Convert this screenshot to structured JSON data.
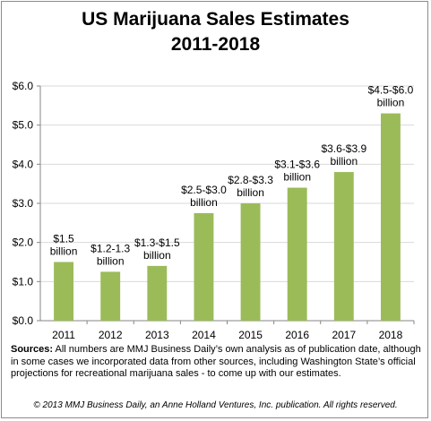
{
  "chart_data": {
    "type": "bar",
    "title": "US Marijuana Sales Estimates",
    "subtitle": "2011-2018",
    "categories": [
      "2011",
      "2012",
      "2013",
      "2014",
      "2015",
      "2016",
      "2017",
      "2018"
    ],
    "values": [
      1.5,
      1.25,
      1.4,
      2.75,
      3.0,
      3.4,
      3.8,
      5.3
    ],
    "value_unit": "$ billion",
    "data_labels": [
      [
        "$1.5",
        "billion"
      ],
      [
        "$1.2-1.3",
        "billion"
      ],
      [
        "$1.3-$1.5",
        "billion"
      ],
      [
        "$2.5-$3.0",
        "billion"
      ],
      [
        "$2.8-$3.3",
        "billion"
      ],
      [
        "$3.1-$3.6",
        "billion"
      ],
      [
        "$3.6-$3.9",
        "billion"
      ],
      [
        "$4.5-$6.0",
        "billion"
      ]
    ],
    "ylim": [
      0,
      6
    ],
    "yticks": [
      0,
      1,
      2,
      3,
      4,
      5,
      6
    ],
    "ytick_labels": [
      "$0.0",
      "$1.0",
      "$2.0",
      "$3.0",
      "$4.0",
      "$5.0",
      "$6.0"
    ],
    "xlabel": "",
    "ylabel": "",
    "grid": true,
    "legend": false,
    "bar_color": "#9bbb59",
    "grid_color": "#d9d9d9"
  },
  "notes": {
    "sources_label": "Sources:",
    "sources_text": " All numbers are MMJ Business Daily’s own analysis as of publication date, although in some cases we incorporated data from other sources, including Washington State’s official projections for recreational marijuana sales - to come up with our estimates.",
    "copyright": "© 2013 MMJ Business Daily, an Anne Holland Ventures, Inc. publication. All rights reserved."
  }
}
